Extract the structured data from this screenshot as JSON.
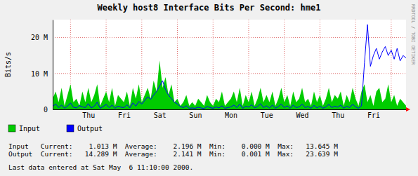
{
  "chart_data": {
    "type": "line",
    "title": "Weekly host8 Interface Bits Per Second: hme1",
    "y_label": "Bits/s",
    "categories": [
      null,
      null,
      null,
      null,
      null,
      null,
      null,
      null,
      null,
      null,
      null,
      null,
      "Thu",
      null,
      null,
      null,
      null,
      null,
      null,
      null,
      null,
      null,
      null,
      null,
      "Fri",
      null,
      null,
      null,
      null,
      null,
      null,
      null,
      null,
      null,
      null,
      null,
      "Sat",
      null,
      null,
      null,
      null,
      null,
      null,
      null,
      null,
      null,
      null,
      null,
      "Sun",
      null,
      null,
      null,
      null,
      null,
      null,
      null,
      null,
      null,
      null,
      null,
      "Mon",
      null,
      null,
      null,
      null,
      null,
      null,
      null,
      null,
      null,
      null,
      null,
      "Tue",
      null,
      null,
      null,
      null,
      null,
      null,
      null,
      null,
      null,
      null,
      null,
      "Wed",
      null,
      null,
      null,
      null,
      null,
      null,
      null,
      null,
      null,
      null,
      null,
      "Thu",
      null,
      null,
      null,
      null,
      null,
      null,
      null,
      null,
      null,
      null,
      null,
      "Fri",
      null,
      null,
      null,
      null,
      null,
      null,
      null,
      null,
      null,
      null,
      null
    ],
    "series": [
      {
        "name": "Input",
        "color": "#00cc00",
        "type": "area",
        "values": [
          3,
          5,
          2,
          6,
          1,
          4,
          7,
          2,
          3,
          1,
          5,
          2,
          6,
          2,
          4,
          7,
          1,
          3,
          5,
          2,
          6,
          1,
          4,
          3,
          2,
          5,
          1,
          6,
          3,
          7,
          2,
          4,
          6,
          3,
          8,
          5,
          13.6,
          6,
          9,
          4,
          7,
          2,
          3,
          1,
          2,
          4,
          1,
          2,
          1,
          3,
          2,
          1,
          4,
          2,
          1,
          3,
          2,
          5,
          1,
          2,
          3,
          5,
          2,
          6,
          1,
          4,
          2,
          5,
          1,
          3,
          6,
          2,
          4,
          2,
          5,
          1,
          3,
          6,
          2,
          4,
          1,
          5,
          2,
          3,
          6,
          2,
          3,
          1,
          5,
          2,
          4,
          1,
          3,
          6,
          2,
          4,
          3,
          5,
          1,
          4,
          2,
          6,
          3,
          1,
          5,
          7,
          2,
          4,
          1,
          5,
          6,
          2,
          3,
          7,
          2,
          4,
          1,
          3,
          2,
          1.013
        ]
      },
      {
        "name": "Output",
        "color": "#0000ff",
        "type": "line",
        "values": [
          0.8,
          1.5,
          0.5,
          1.2,
          0.3,
          0.9,
          1.8,
          0.6,
          0.4,
          1.1,
          0.7,
          0.5,
          1.6,
          0.4,
          0.9,
          2,
          0.3,
          0.8,
          1.4,
          0.5,
          1.2,
          0.3,
          0.9,
          0.6,
          0.5,
          1.3,
          0.4,
          1.8,
          0.9,
          2.2,
          1.5,
          2.5,
          3.5,
          2.8,
          4,
          5,
          6.5,
          8,
          5.5,
          4,
          3,
          2,
          1.5,
          0.8,
          0.5,
          1,
          0.3,
          0.4,
          0.3,
          0.6,
          0.4,
          0.2,
          0.8,
          0.5,
          0.3,
          0.7,
          0.4,
          1,
          0.3,
          0.5,
          0.7,
          1.2,
          0.5,
          1.5,
          0.3,
          0.9,
          0.6,
          1.3,
          0.4,
          0.8,
          1.6,
          0.5,
          1,
          0.4,
          1.2,
          0.3,
          0.8,
          1.5,
          0.5,
          1,
          0.3,
          1.2,
          0.5,
          0.7,
          1.5,
          0.5,
          0.8,
          0.3,
          1.1,
          0.4,
          0.9,
          0.3,
          0.7,
          1.4,
          0.5,
          0.9,
          0.6,
          1.2,
          0.3,
          0.9,
          0.5,
          1.4,
          0.7,
          0.3,
          1,
          13,
          23.639,
          12,
          15,
          17,
          14,
          16,
          17.5,
          15,
          16.5,
          14,
          17,
          13.5,
          15,
          14.289
        ]
      }
    ],
    "ylim": [
      0,
      25
    ],
    "yticks": [
      0,
      {
        "value": 10,
        "label": "10 M"
      },
      {
        "value": 20,
        "label": "20 M"
      }
    ],
    "grid": true,
    "legend": "bottom",
    "annotations": [
      "Input   Current:    1.013 M  Average:    2.196 M  Min:    0.000 M  Max:   13.645 M",
      "Output  Current:   14.289 M  Average:    2.141 M  Min:    0.001 M  Max:   23.639 M",
      "Last data entered at Sat May  6 11:10:00 2000.",
      "RRDTOOL / TOBI OETIKER"
    ]
  }
}
